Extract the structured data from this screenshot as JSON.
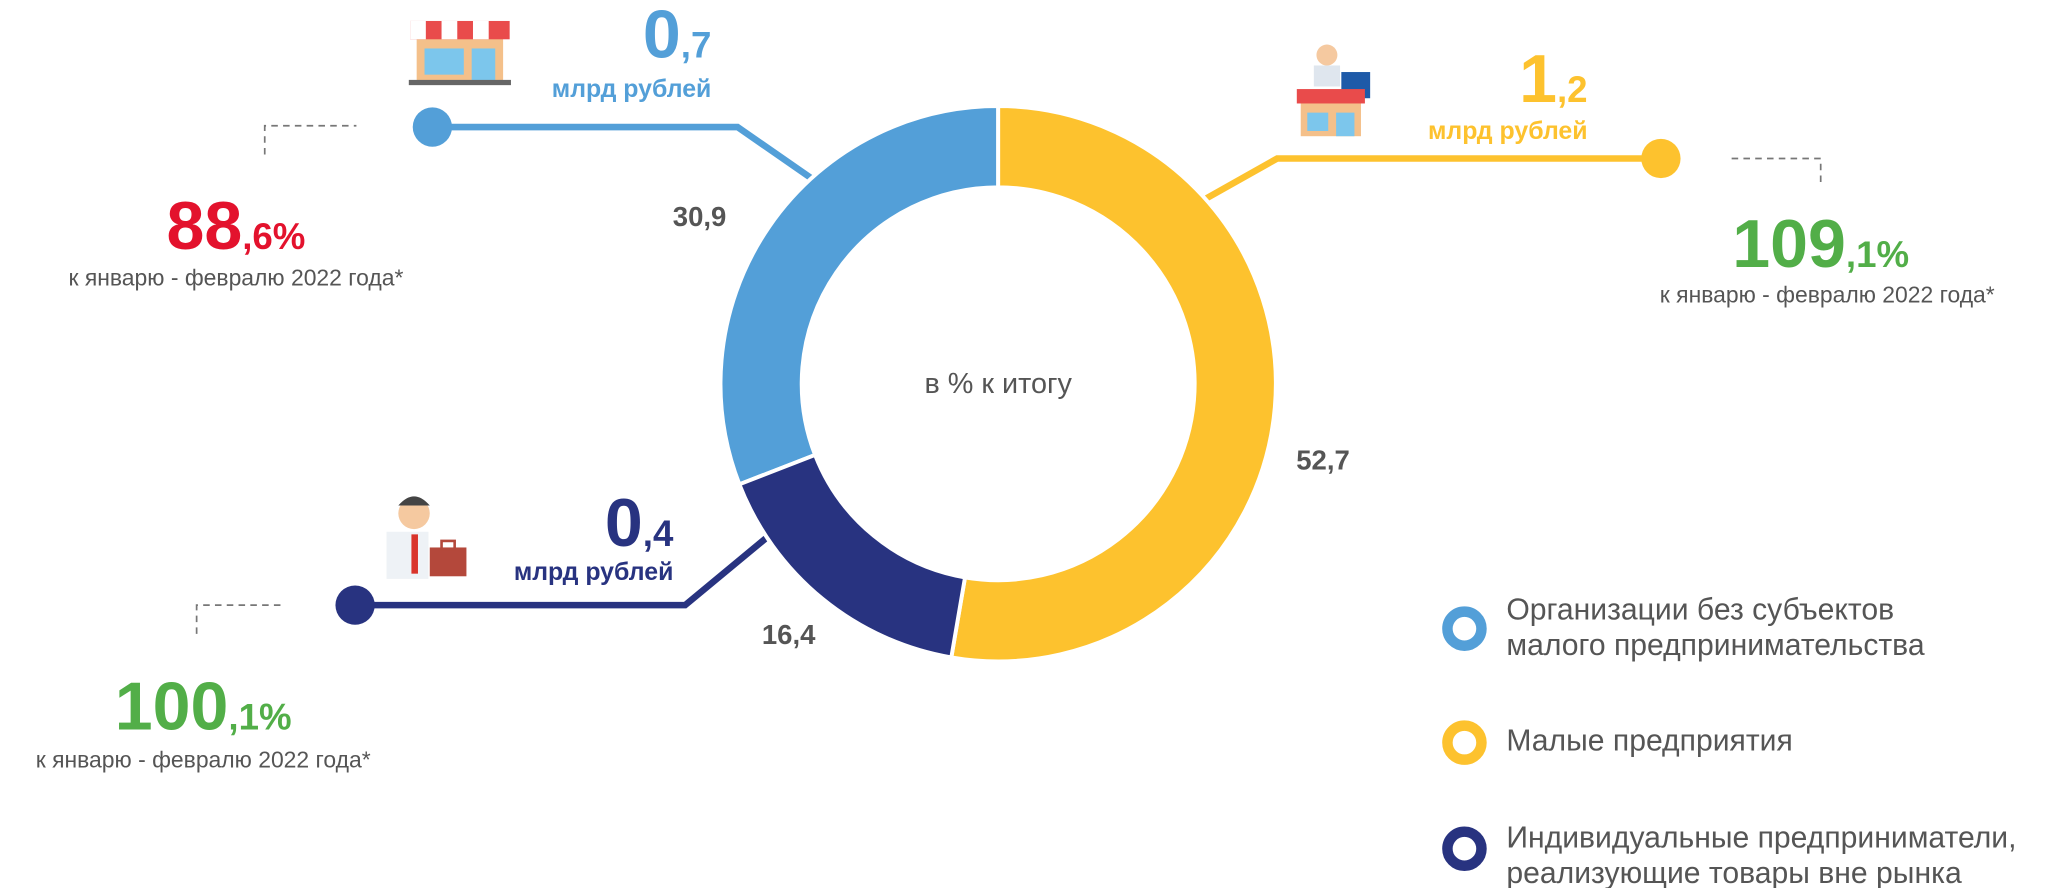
{
  "chart_data": {
    "type": "donut",
    "center_label": "в % к итогу",
    "categories": [
      "Организации без субъектов\nмалого предпринимательства",
      "Малые предприятия",
      "Индивидуальные предприниматели,\nреализующие товары вне рынка"
    ],
    "values": [
      30.9,
      52.7,
      16.4
    ],
    "value_labels": [
      "30,9",
      "52,7",
      "16,4"
    ],
    "colors": [
      "#539fd8",
      "#fdc22e",
      "#283380"
    ]
  },
  "callouts": [
    {
      "amount_int": "0",
      "amount_frac": ",7",
      "unit": "млрд рублей",
      "pct_int": "88",
      "pct_frac": ",6%",
      "note": "к январю - февралю 2022 года*"
    },
    {
      "amount_int": "1",
      "amount_frac": ",2",
      "unit": "млрд рублей",
      "pct_int": "109",
      "pct_frac": ",1%",
      "note": "к январю - февралю 2022 года*"
    },
    {
      "amount_int": "0",
      "amount_frac": ",4",
      "unit": "млрд рублей",
      "pct_int": "100",
      "pct_frac": ",1%",
      "note": "к январю - февралю 2022 года*"
    }
  ]
}
